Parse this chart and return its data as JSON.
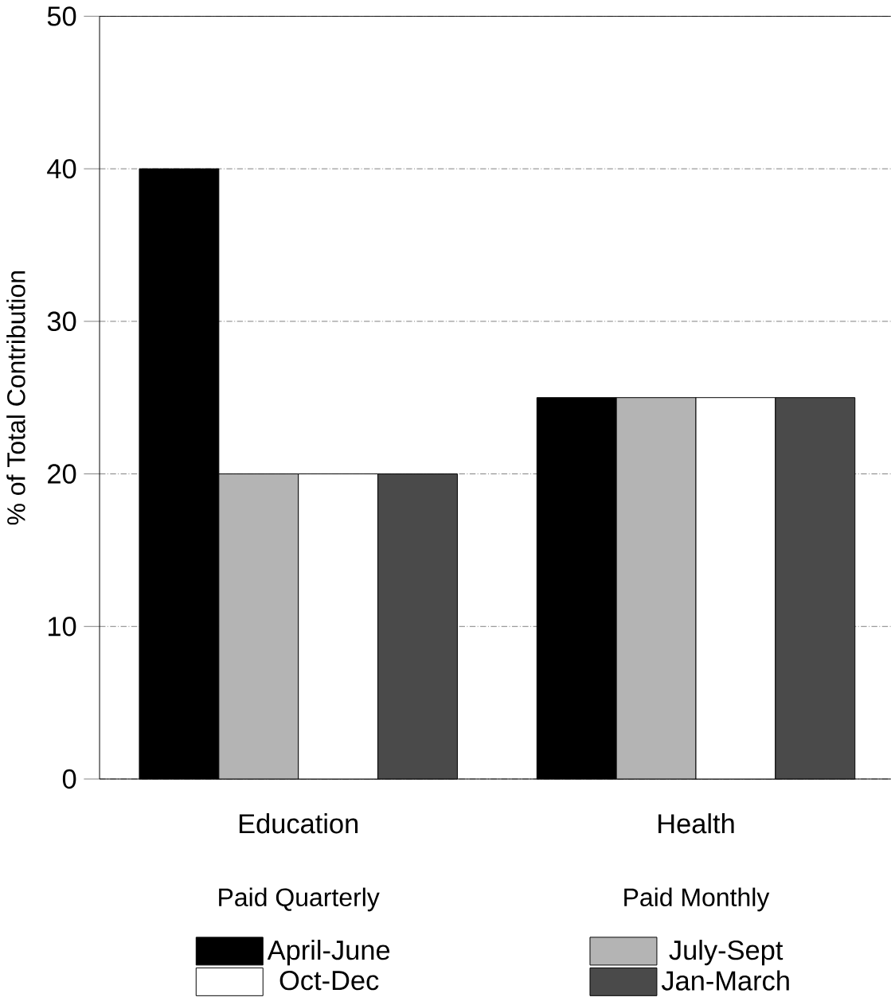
{
  "chart_data": {
    "type": "bar",
    "categories": [
      "Education",
      "Health"
    ],
    "annotations": [
      "Paid Quarterly",
      "Paid Monthly"
    ],
    "ylabel": "% of Total Contribution",
    "series": [
      {
        "name": "April-June",
        "color": "#000000",
        "values": [
          40,
          25
        ]
      },
      {
        "name": "July-Sept",
        "color": "#b4b4b4",
        "values": [
          20,
          25
        ]
      },
      {
        "name": "Oct-Dec",
        "color": "#ffffff",
        "values": [
          20,
          25
        ]
      },
      {
        "name": "Jan-March",
        "color": "#4a4a4a",
        "values": [
          20,
          25
        ]
      }
    ],
    "ylim": [
      0,
      50
    ],
    "yticks": [
      0,
      10,
      20,
      30,
      40,
      50
    ],
    "grid": "y",
    "legend": "bottom"
  }
}
